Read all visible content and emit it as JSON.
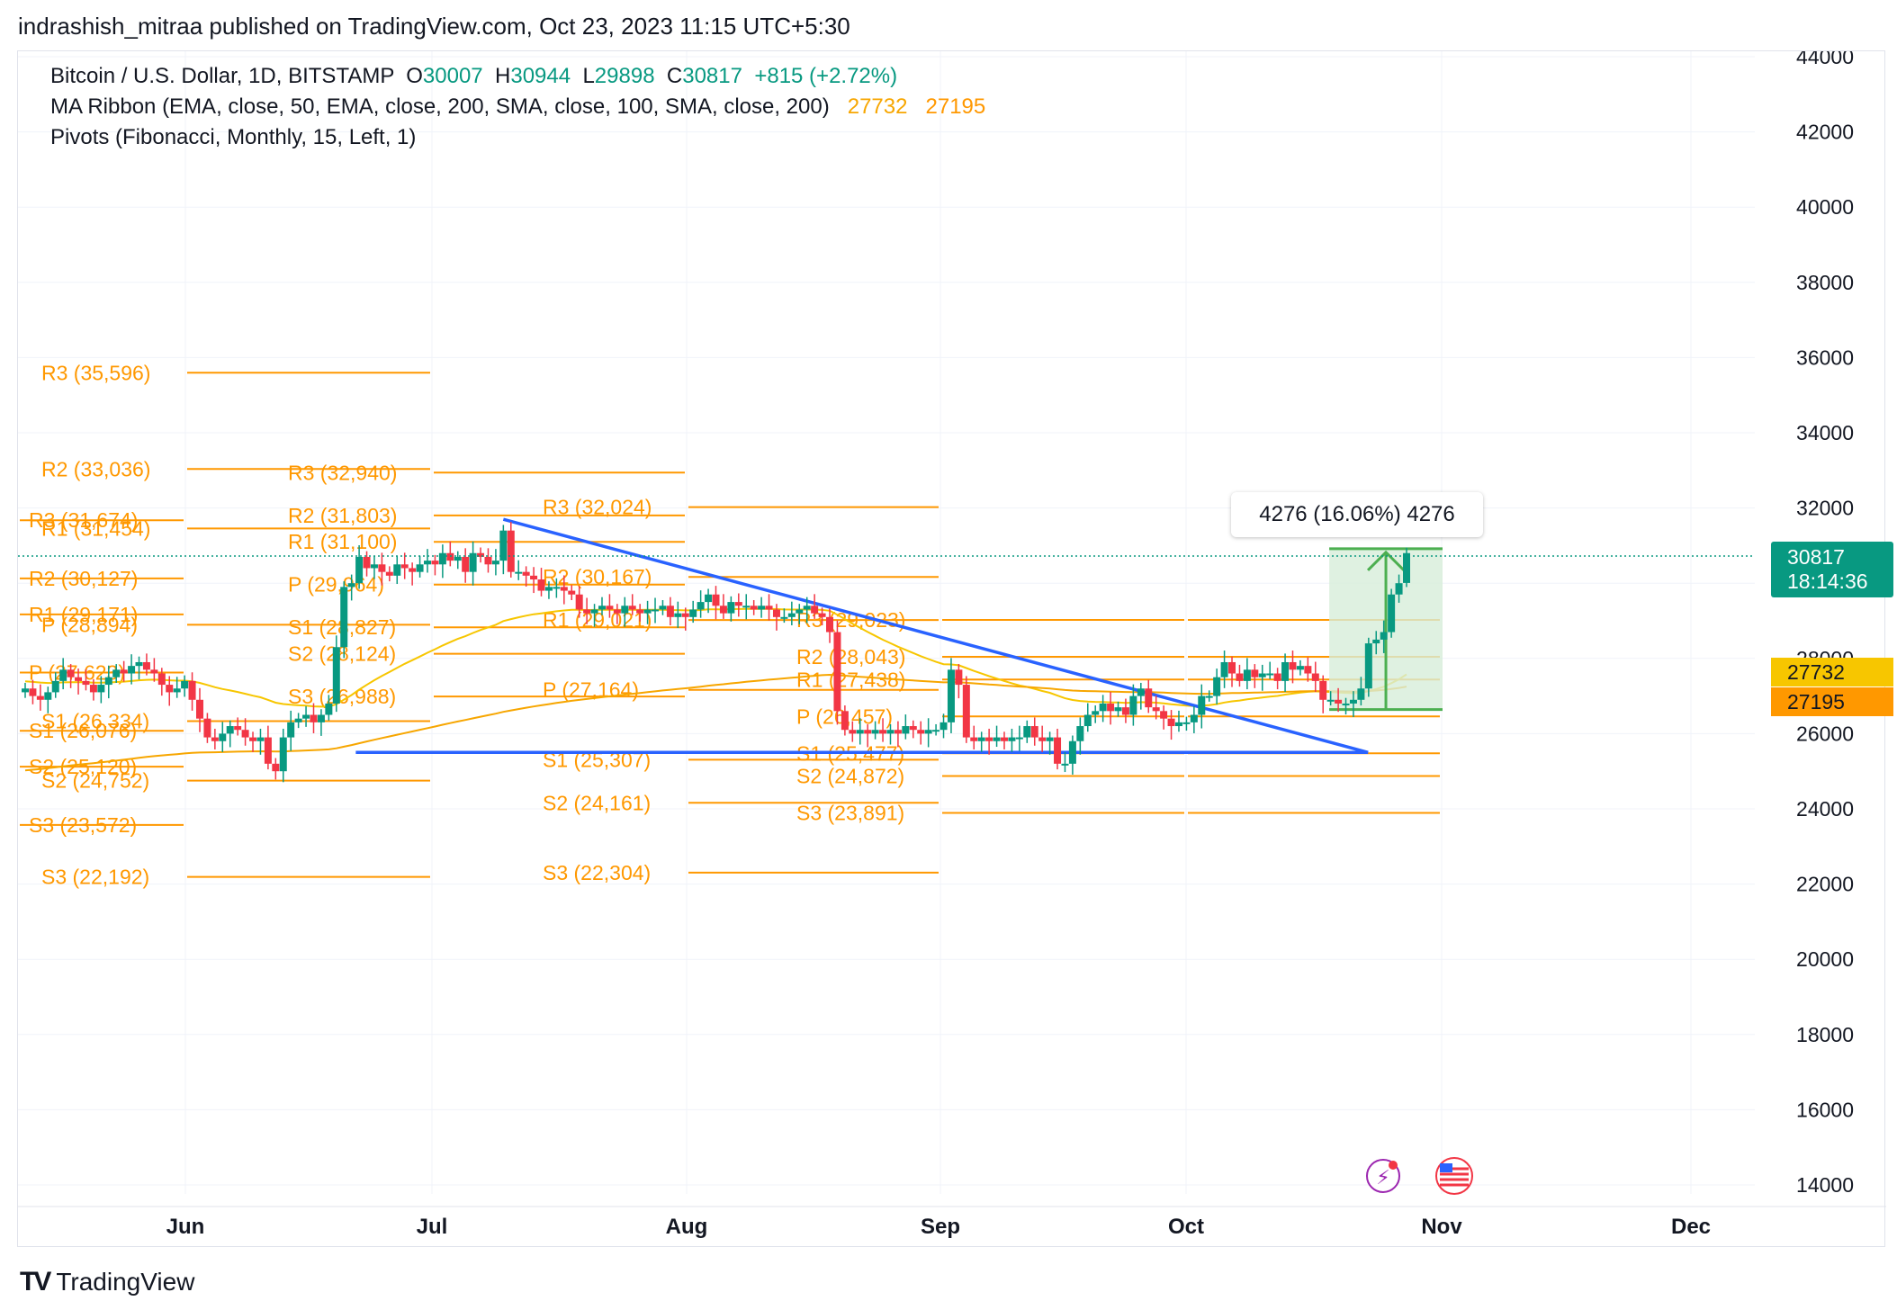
{
  "header": {
    "published": "indrashish_mitraa published on TradingView.com, Oct 23, 2023 11:15 UTC+5:30"
  },
  "legend": {
    "symbol": "Bitcoin / U.S. Dollar, 1D, BITSTAMP",
    "o_label": "O",
    "o_value": "30007",
    "h_label": "H",
    "h_value": "30944",
    "l_label": "L",
    "l_value": "29898",
    "c_label": "C",
    "c_value": "30817",
    "change": "+815 (+2.72%)",
    "ma_label": "MA Ribbon (EMA, close, 50, EMA, close, 200, SMA, close, 100, SMA, close, 200)",
    "ma_val1": "27732",
    "ma_val2": "27195",
    "pivots_label": "Pivots (Fibonacci, Monthly, 15, Left, 1)"
  },
  "footer": {
    "brand": "TradingView"
  },
  "price_tags": {
    "last_price": "30817",
    "countdown": "18:14:36",
    "ma1": "27732",
    "ma2": "27195"
  },
  "measure_label": "4276 (16.06%) 4276",
  "colors": {
    "up": "#089981",
    "down": "#f23645",
    "pivot": "#ff9800",
    "trendline": "#2962ff",
    "ma_fast": "#f7c600",
    "ma_slow": "#f7a600",
    "measure_fill": "#d7eed9",
    "measure_line": "#4caf50"
  },
  "chart_data": {
    "type": "candlestick",
    "y_axis_ticks": [
      44000,
      42000,
      40000,
      38000,
      36000,
      34000,
      32000,
      30000,
      28000,
      26000,
      24000,
      22000,
      20000,
      18000,
      16000,
      14000
    ],
    "x_axis_ticks": [
      "Jun",
      "Jul",
      "Aug",
      "Sep",
      "Oct",
      "Nov",
      "Dec"
    ],
    "ylim": [
      14000,
      44000
    ],
    "grid": true,
    "pivot_periods": [
      {
        "period": "May",
        "levels": [
          {
            "name": "R3",
            "value": 31674,
            "label": "R3 (31,674)"
          },
          {
            "name": "R2",
            "value": 30127,
            "label": "R2 (30,127)"
          },
          {
            "name": "R1",
            "value": 29171,
            "label": "R1 (29,171)"
          },
          {
            "name": "P",
            "value": 27623,
            "label": "P (27,623)"
          },
          {
            "name": "S1",
            "value": 26076,
            "label": "S1 (26,076)"
          },
          {
            "name": "S2",
            "value": 25120,
            "label": "S2 (25,120)"
          },
          {
            "name": "S3",
            "value": 23572,
            "label": "S3 (23,572)"
          }
        ]
      },
      {
        "period": "Jun",
        "levels": [
          {
            "name": "R3",
            "value": 35596,
            "label": "R3 (35,596)"
          },
          {
            "name": "R2",
            "value": 33036,
            "label": "R2 (33,036)"
          },
          {
            "name": "R1",
            "value": 31454,
            "label": "R1 (31,454)"
          },
          {
            "name": "P",
            "value": 28894,
            "label": "P (28,894)"
          },
          {
            "name": "S1",
            "value": 26334,
            "label": "S1 (26,334)"
          },
          {
            "name": "S2",
            "value": 24752,
            "label": "S2 (24,752)"
          },
          {
            "name": "S3",
            "value": 22192,
            "label": "S3 (22,192)"
          }
        ]
      },
      {
        "period": "Jul",
        "levels": [
          {
            "name": "R3",
            "value": 32940,
            "label": "R3 (32,940)"
          },
          {
            "name": "R2",
            "value": 31803,
            "label": "R2 (31,803)"
          },
          {
            "name": "R1",
            "value": 31100,
            "label": "R1 (31,100)"
          },
          {
            "name": "P",
            "value": 29964,
            "label": "P (29,964)"
          },
          {
            "name": "S1",
            "value": 28827,
            "label": "S1 (28,827)"
          },
          {
            "name": "S2",
            "value": 28124,
            "label": "S2 (28,124)"
          },
          {
            "name": "S3",
            "value": 26988,
            "label": "S3 (26,988)"
          }
        ]
      },
      {
        "period": "Aug",
        "levels": [
          {
            "name": "R3",
            "value": 32024,
            "label": "R3 (32,024)"
          },
          {
            "name": "R2",
            "value": 30167,
            "label": "R2 (30,167)"
          },
          {
            "name": "R1",
            "value": 29021,
            "label": "R1 (29,021)"
          },
          {
            "name": "P",
            "value": 27164,
            "label": "P (27,164)"
          },
          {
            "name": "S1",
            "value": 25307,
            "label": "S1 (25,307)"
          },
          {
            "name": "S2",
            "value": 24161,
            "label": "S2 (24,161)"
          },
          {
            "name": "S3",
            "value": 22304,
            "label": "S3 (22,304)"
          }
        ]
      },
      {
        "period": "Sep",
        "levels": [
          {
            "name": "R3",
            "value": 29023,
            "label": "R3 (29,023)"
          },
          {
            "name": "R2",
            "value": 28043,
            "label": "R2 (28,043)"
          },
          {
            "name": "R1",
            "value": 27438,
            "label": "R1 (27,438)"
          },
          {
            "name": "P",
            "value": 26457,
            "label": "P (26,457)"
          },
          {
            "name": "S1",
            "value": 25477,
            "label": "S1 (25,477)"
          },
          {
            "name": "S2",
            "value": 24872,
            "label": "S2 (24,872)"
          },
          {
            "name": "S3",
            "value": 23891,
            "label": "S3 (23,891)"
          }
        ]
      },
      {
        "period": "Oct",
        "levels": [
          {
            "name": "R3",
            "value": 29023
          },
          {
            "name": "R2",
            "value": 28043
          },
          {
            "name": "R1",
            "value": 27438
          },
          {
            "name": "P",
            "value": 26457
          },
          {
            "name": "S1",
            "value": 25477
          },
          {
            "name": "S2",
            "value": 24872
          },
          {
            "name": "S3",
            "value": 23891
          }
        ]
      }
    ],
    "closes": [
      27200,
      27000,
      26900,
      27100,
      27400,
      27700,
      27500,
      27400,
      27300,
      27100,
      27300,
      27500,
      27700,
      27600,
      27800,
      27900,
      27700,
      27600,
      27300,
      27100,
      27200,
      27400,
      26900,
      26400,
      25900,
      25800,
      26000,
      26200,
      26100,
      25900,
      25800,
      25900,
      25200,
      25000,
      25900,
      26300,
      26400,
      26500,
      26300,
      26500,
      26800,
      28300,
      29900,
      30000,
      30700,
      30400,
      30500,
      30300,
      30200,
      30500,
      30400,
      30300,
      30500,
      30600,
      30500,
      30800,
      30600,
      30700,
      30300,
      30800,
      30700,
      30500,
      30600,
      31400,
      30300,
      30300,
      30200,
      30100,
      29800,
      29900,
      29900,
      29800,
      29700,
      29300,
      29200,
      29300,
      29400,
      29300,
      29200,
      29400,
      29300,
      29200,
      29300,
      29300,
      29400,
      29100,
      29200,
      29100,
      29300,
      29500,
      29700,
      29400,
      29200,
      29500,
      29400,
      29400,
      29300,
      29400,
      29300,
      29100,
      29100,
      29200,
      29300,
      29400,
      29200,
      29100,
      28700,
      26600,
      26100,
      26000,
      26100,
      26000,
      26100,
      26000,
      26100,
      26000,
      26200,
      26100,
      26000,
      26100,
      26100,
      26300,
      27700,
      27300,
      25900,
      25800,
      25900,
      25800,
      25900,
      25800,
      25900,
      25900,
      26200,
      25900,
      25800,
      25900,
      25200,
      25200,
      25800,
      26200,
      26500,
      26600,
      26800,
      26600,
      26700,
      26500,
      27000,
      27200,
      26700,
      26600,
      26400,
      26200,
      26300,
      26300,
      26500,
      27000,
      27000,
      27500,
      27900,
      27600,
      27400,
      27700,
      27500,
      27600,
      27600,
      27400,
      27900,
      27700,
      27800,
      27600,
      27400,
      26900,
      26900,
      26800,
      26800,
      26900,
      27200,
      28400,
      28500,
      28700,
      29700,
      30000,
      30800
    ],
    "series": [
      {
        "name": "EMA 50",
        "value_last": 27732
      },
      {
        "name": "EMA 200",
        "value_last": 27195
      }
    ],
    "last": {
      "open": 30007,
      "high": 30944,
      "low": 29898,
      "close": 30817,
      "change": 815,
      "change_pct": 2.72
    }
  }
}
